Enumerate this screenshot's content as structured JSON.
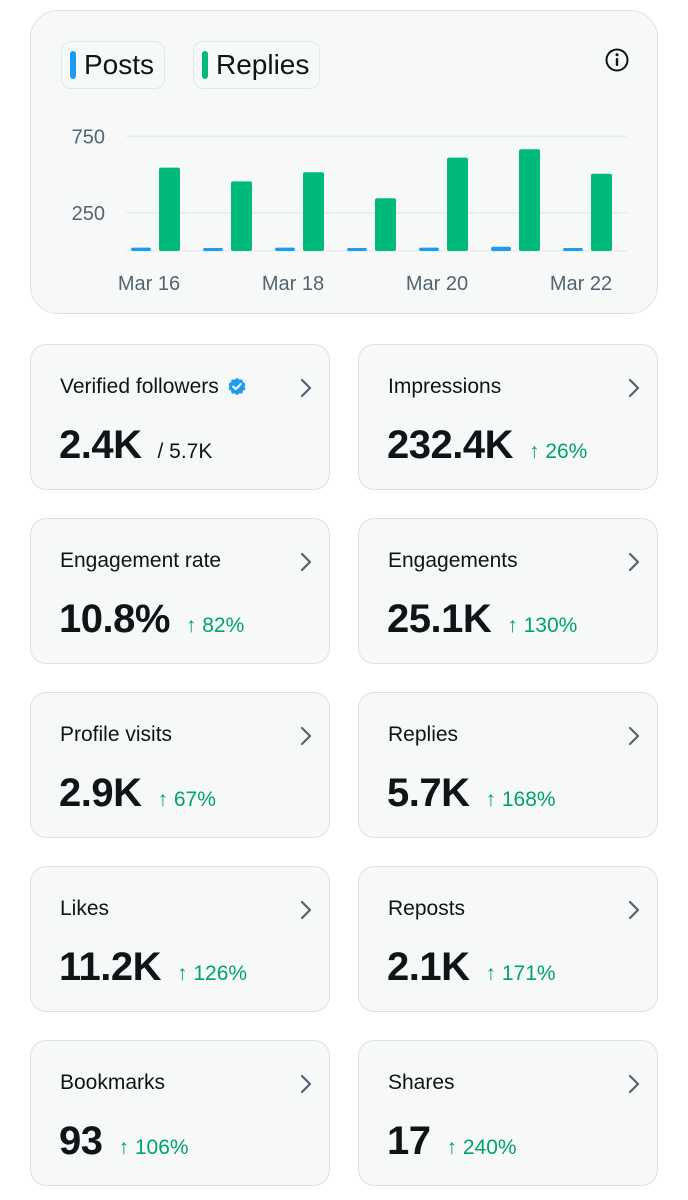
{
  "chart": {
    "legend": [
      {
        "label": "Posts",
        "color": "#1d9bf0"
      },
      {
        "label": "Replies",
        "color": "#00ba7c"
      }
    ],
    "info_icon": "info-icon"
  },
  "chart_data": {
    "type": "bar",
    "categories": [
      "Mar 16",
      "Mar 17",
      "Mar 18",
      "Mar 19",
      "Mar 20",
      "Mar 21",
      "Mar 22"
    ],
    "x_tick_labels": [
      "Mar 16",
      "Mar 18",
      "Mar 20",
      "Mar 22"
    ],
    "y_tick_labels": [
      250,
      750
    ],
    "ylim": [
      0,
      800
    ],
    "grid": true,
    "series": [
      {
        "name": "Posts",
        "color": "#1d9bf0",
        "values": [
          22,
          18,
          22,
          8,
          22,
          28,
          12
        ]
      },
      {
        "name": "Replies",
        "color": "#00ba7c",
        "values": [
          545,
          455,
          515,
          345,
          610,
          665,
          505
        ]
      }
    ]
  },
  "stats": [
    {
      "label": "Verified followers",
      "value": "2.4K",
      "sub": "/ 5.7K",
      "verified": true
    },
    {
      "label": "Impressions",
      "value": "232.4K",
      "delta": "↑ 26%"
    },
    {
      "label": "Engagement rate",
      "value": "10.8%",
      "delta": "↑ 82%"
    },
    {
      "label": "Engagements",
      "value": "25.1K",
      "delta": "↑ 130%"
    },
    {
      "label": "Profile visits",
      "value": "2.9K",
      "delta": "↑ 67%"
    },
    {
      "label": "Replies",
      "value": "5.7K",
      "delta": "↑ 168%"
    },
    {
      "label": "Likes",
      "value": "11.2K",
      "delta": "↑ 126%"
    },
    {
      "label": "Reposts",
      "value": "2.1K",
      "delta": "↑ 171%"
    },
    {
      "label": "Bookmarks",
      "value": "93",
      "delta": "↑ 106%"
    },
    {
      "label": "Shares",
      "value": "17",
      "delta": "↑ 240%"
    }
  ]
}
